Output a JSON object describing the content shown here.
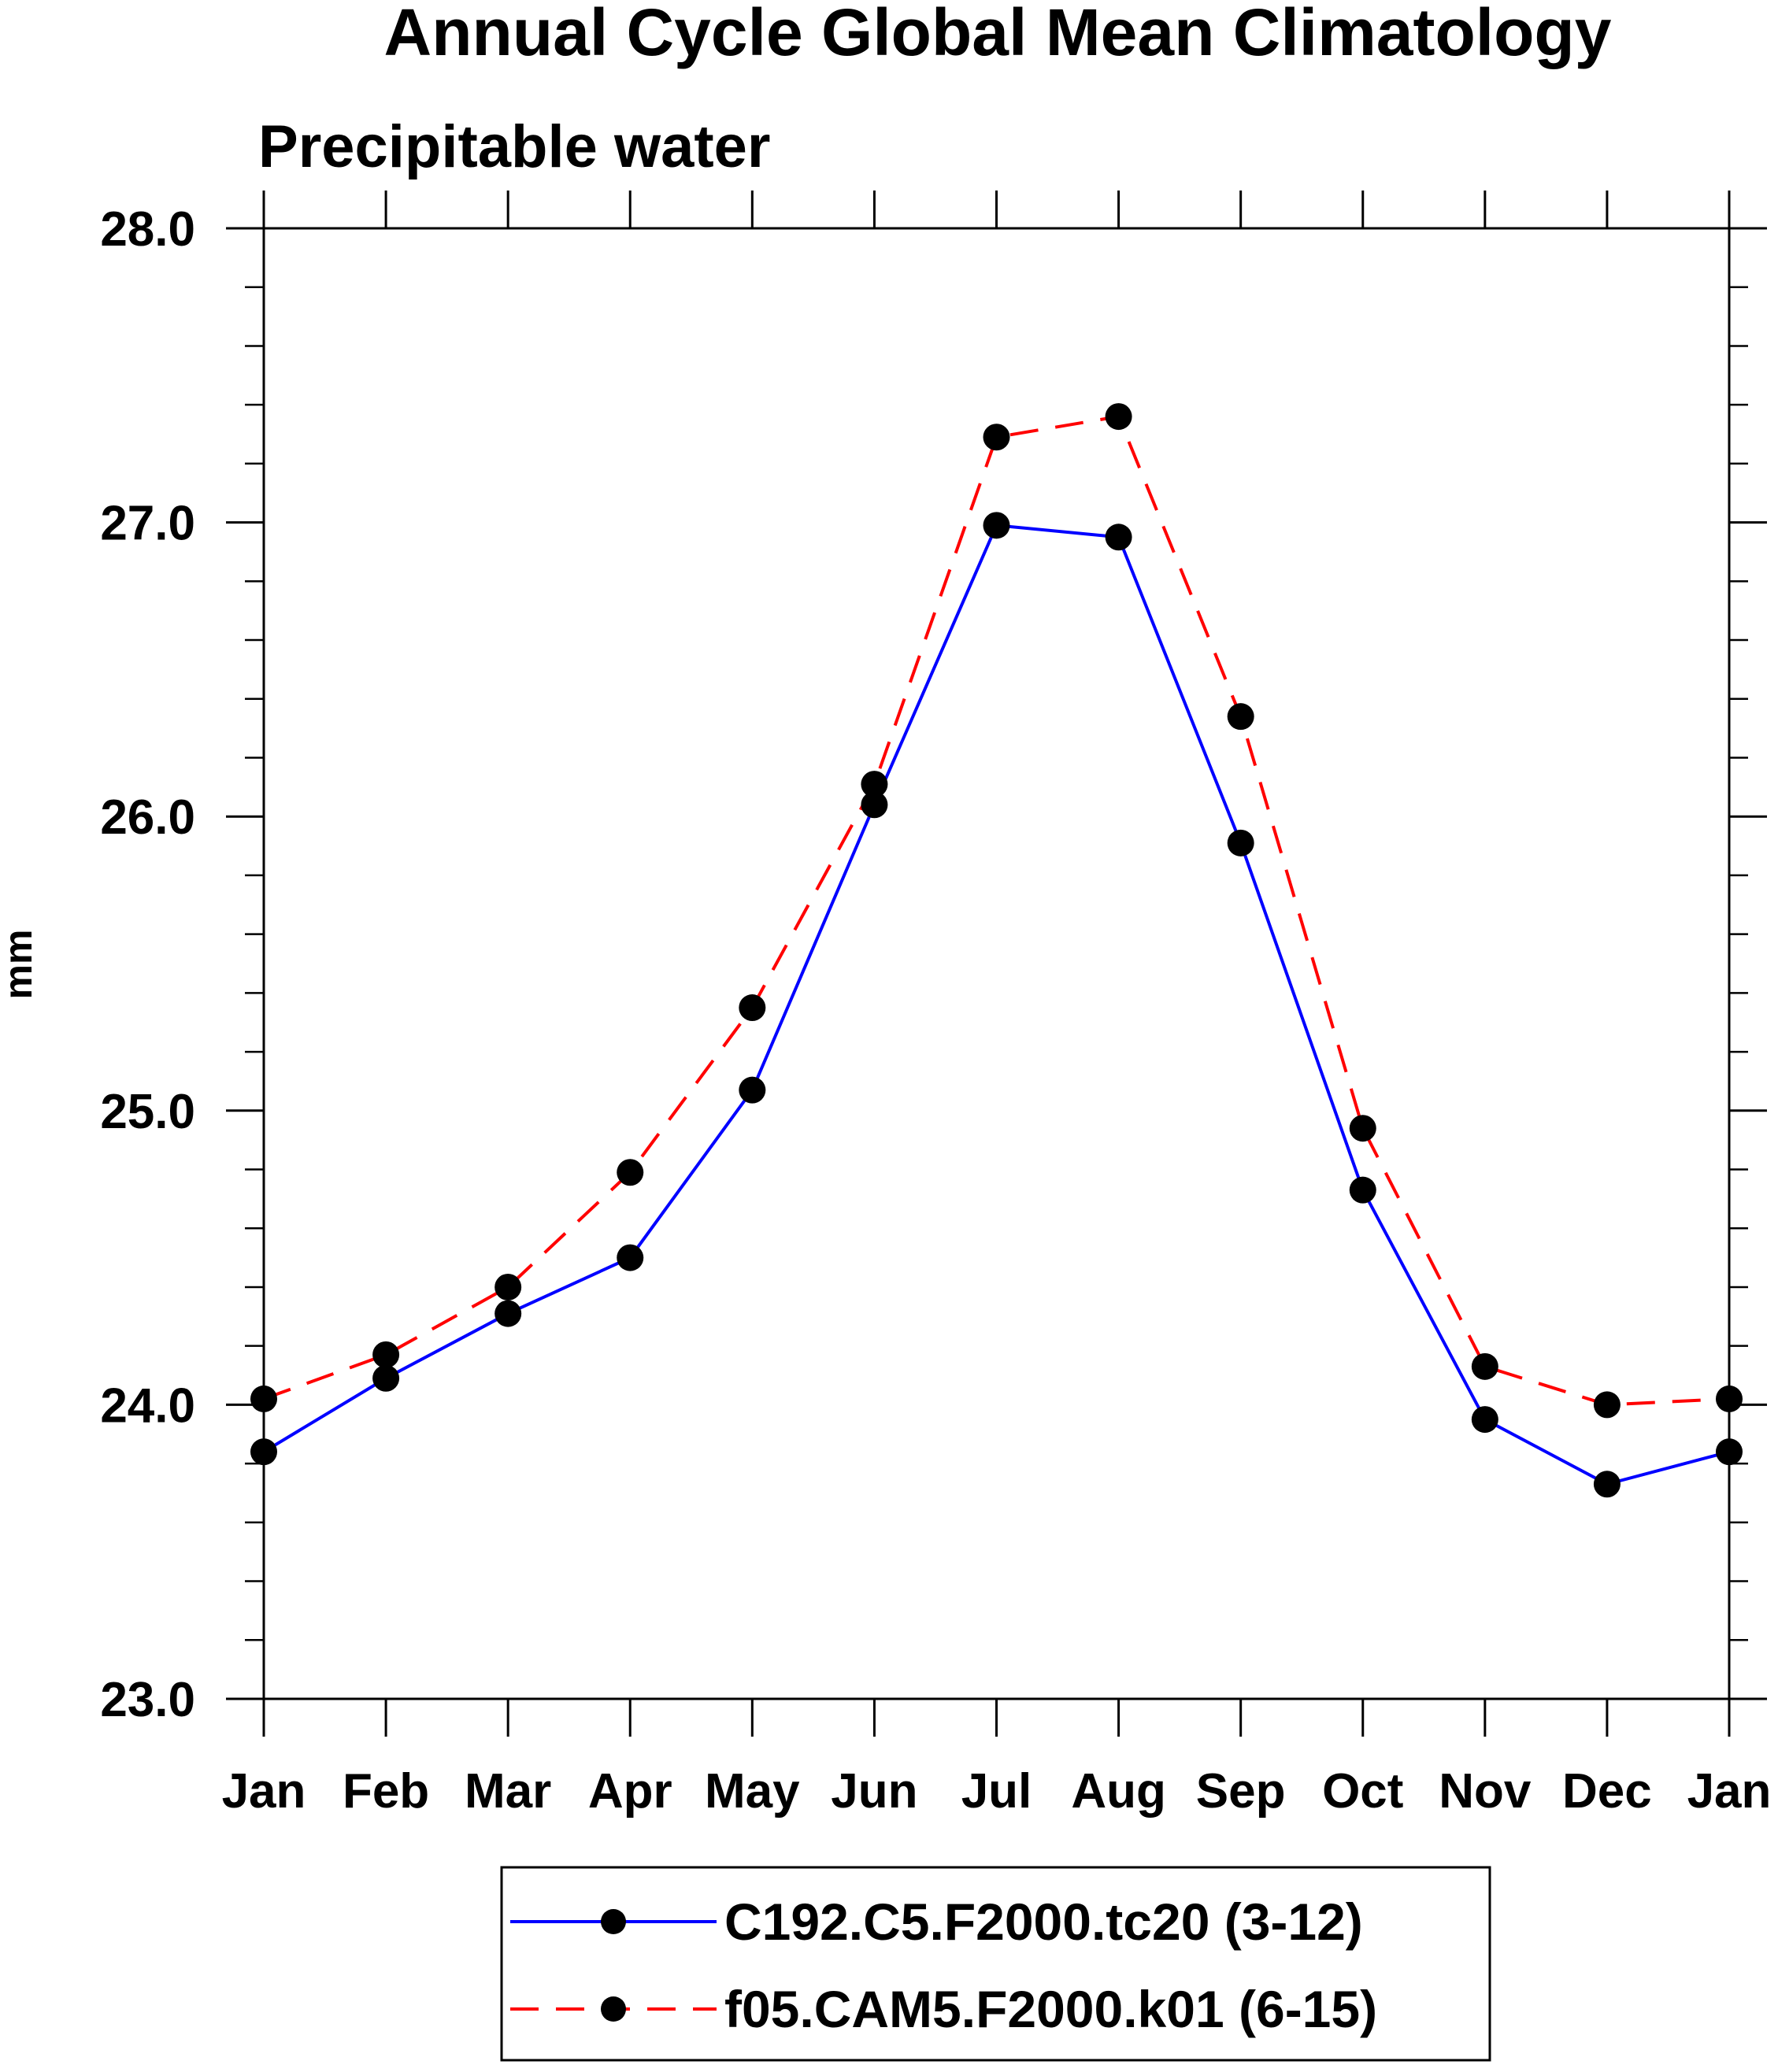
{
  "chart_data": {
    "type": "line",
    "title": "Annual Cycle Global Mean Climatology",
    "subtitle": "Precipitable water",
    "xlabel": "",
    "ylabel": "mm",
    "categories": [
      "Jan",
      "Feb",
      "Mar",
      "Apr",
      "May",
      "Jun",
      "Jul",
      "Aug",
      "Sep",
      "Oct",
      "Nov",
      "Dec",
      "Jan"
    ],
    "ylim": [
      23.0,
      28.0
    ],
    "yticks": [
      "23.0",
      "24.0",
      "25.0",
      "26.0",
      "27.0",
      "28.0"
    ],
    "grid": false,
    "legend_position": "bottom-center",
    "series": [
      {
        "name": "C192.C5.F2000.tc20 (3-12)",
        "color": "#0000ff",
        "dash": "solid",
        "marker": "filled-circle",
        "values": [
          23.84,
          24.09,
          24.31,
          24.5,
          25.07,
          26.04,
          26.99,
          26.95,
          25.91,
          24.73,
          23.95,
          23.73,
          23.84
        ]
      },
      {
        "name": "f05.CAM5.F2000.k01 (6-15)",
        "color": "#ff0000",
        "dash": "dashed",
        "marker": "filled-circle",
        "values": [
          24.02,
          24.17,
          24.4,
          24.79,
          25.35,
          26.11,
          27.29,
          27.36,
          26.34,
          24.94,
          24.13,
          24.0,
          24.02
        ]
      }
    ]
  }
}
